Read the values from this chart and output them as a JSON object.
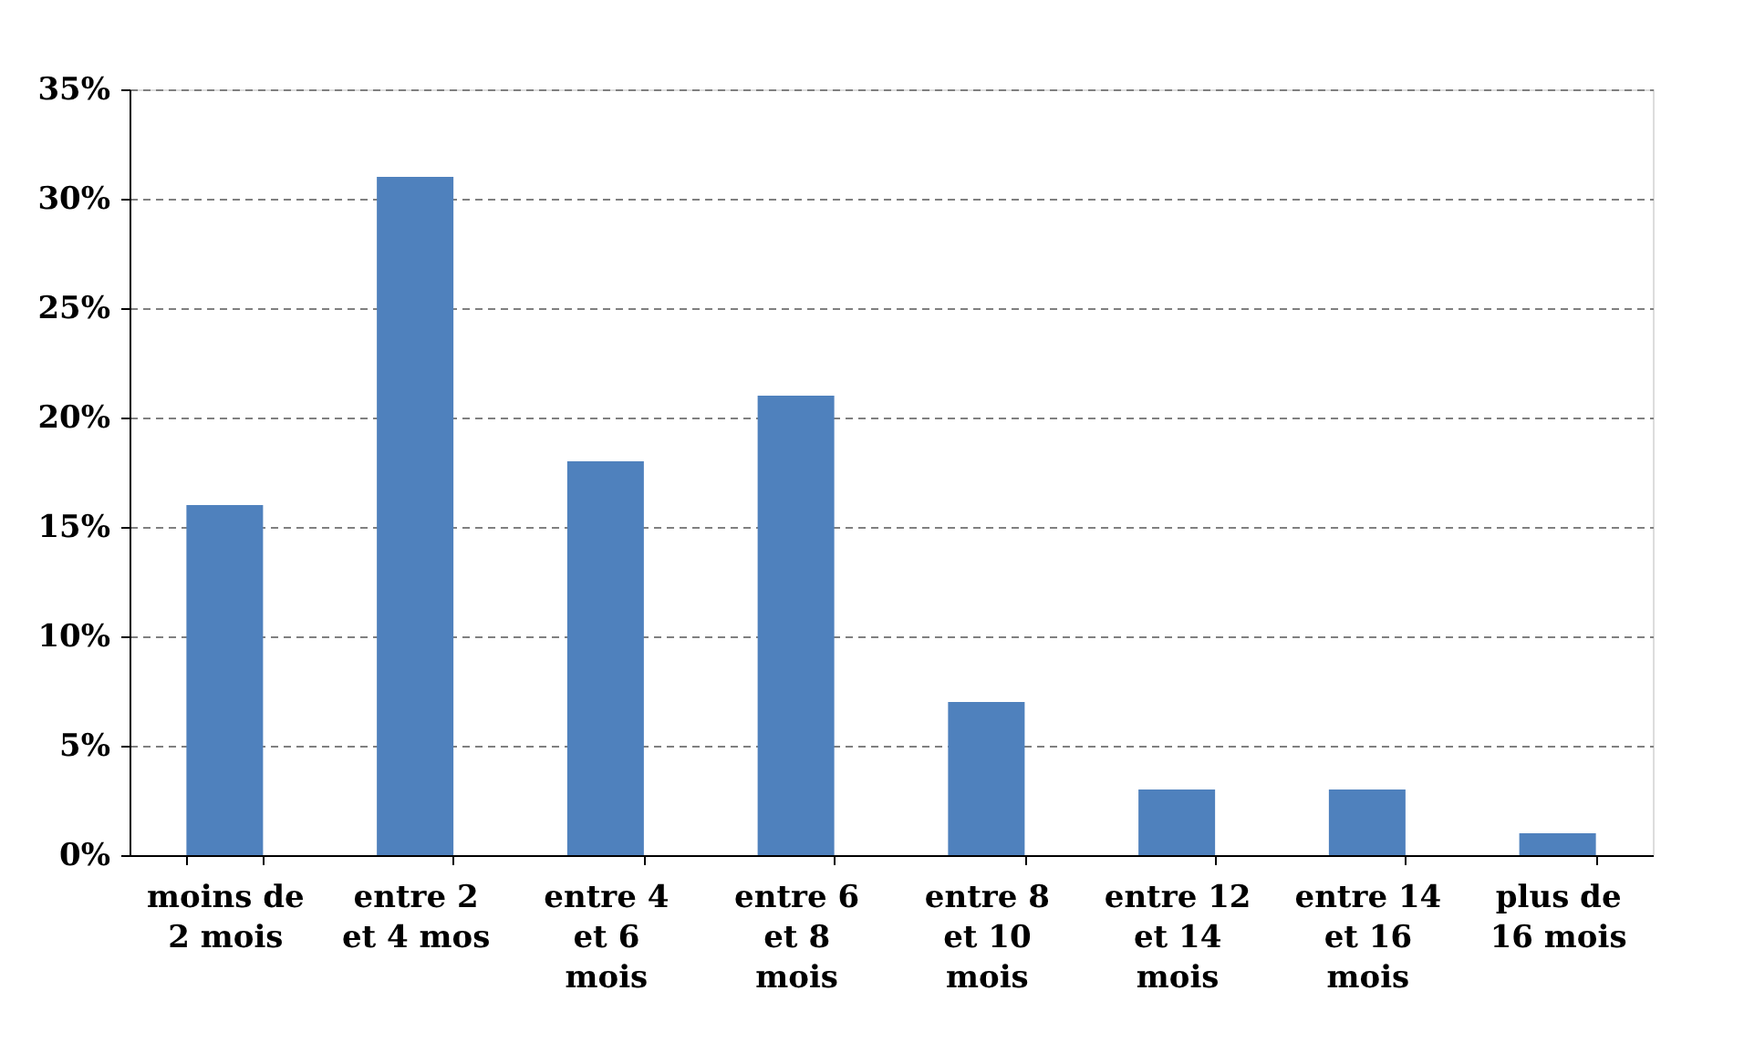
{
  "chart_data": {
    "type": "bar",
    "categories": [
      "moins de 2 mois",
      "entre 2 et 4 mos",
      "entre 4 et 6 mois",
      "entre 6 et 8 mois",
      "entre 8 et 10 mois",
      "entre 12 et 14 mois",
      "entre 14 et 16 mois",
      "plus de 16 mois"
    ],
    "values": [
      16,
      31,
      18,
      21,
      7,
      3,
      3,
      1
    ],
    "color": "#4f81bd",
    "ylim": [
      0,
      35
    ],
    "yticks": [
      {
        "value": 0,
        "label": "0%"
      },
      {
        "value": 5,
        "label": "5%"
      },
      {
        "value": 10,
        "label": "10%"
      },
      {
        "value": 15,
        "label": "15%"
      },
      {
        "value": 20,
        "label": "20%"
      },
      {
        "value": 25,
        "label": "25%"
      },
      {
        "value": 30,
        "label": "30%"
      },
      {
        "value": 35,
        "label": "35%"
      }
    ],
    "grid": "y"
  }
}
